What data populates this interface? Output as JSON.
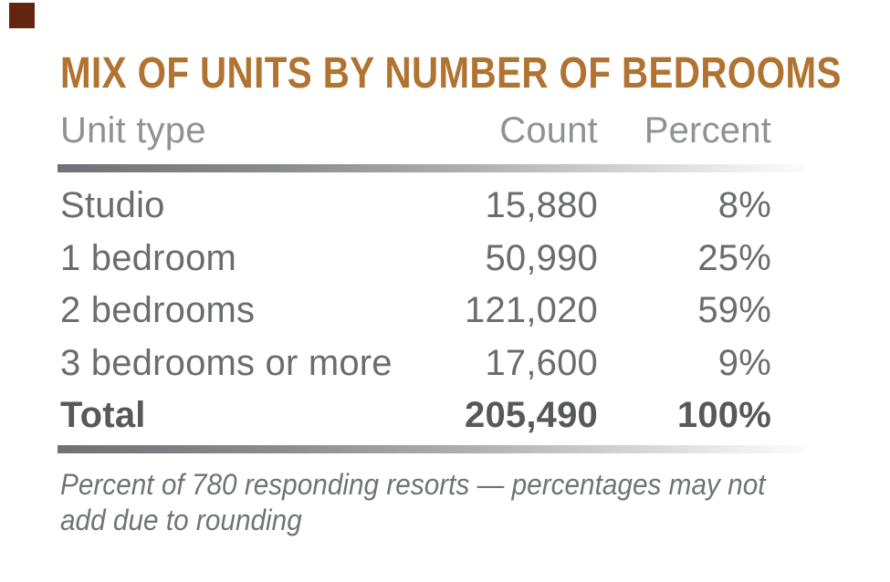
{
  "title": {
    "text": "MIX OF UNITS BY NUMBER OF BEDROOMS"
  },
  "table": {
    "columns": [
      "Unit type",
      "Count",
      "Percent"
    ],
    "rows": [
      {
        "unit_type": "Studio",
        "count": "15,880",
        "percent": "8%"
      },
      {
        "unit_type": "1 bedroom",
        "count": "50,990",
        "percent": "25%"
      },
      {
        "unit_type": "2 bedrooms",
        "count": "121,020",
        "percent": "59%"
      },
      {
        "unit_type": "3 bedrooms or more",
        "count": "17,600",
        "percent": "9%"
      }
    ],
    "total": {
      "label": "Total",
      "count": "205,490",
      "percent": "100%"
    }
  },
  "footnote": {
    "line1": "Percent of 780 responding resorts — percentages may not",
    "line2": "add due to rounding"
  },
  "colors": {
    "accent": "#b07330",
    "corner": "#63250e",
    "header": "#8f9194",
    "body": "#6a6c6e",
    "total": "#57585a",
    "footnote": "#717477"
  },
  "chart_data": {
    "type": "table",
    "title": "MIX OF UNITS BY NUMBER OF BEDROOMS",
    "columns": [
      "Unit type",
      "Count",
      "Percent"
    ],
    "categories": [
      "Studio",
      "1 bedroom",
      "2 bedrooms",
      "3 bedrooms or more"
    ],
    "series": [
      {
        "name": "Count",
        "values": [
          15880,
          50990,
          121020,
          17600
        ]
      },
      {
        "name": "Percent",
        "values": [
          8,
          25,
          59,
          9
        ]
      }
    ],
    "total": {
      "label": "Total",
      "count": 205490,
      "percent": 100
    },
    "footnote": "Percent of 780 responding resorts — percentages may not add due to rounding"
  }
}
